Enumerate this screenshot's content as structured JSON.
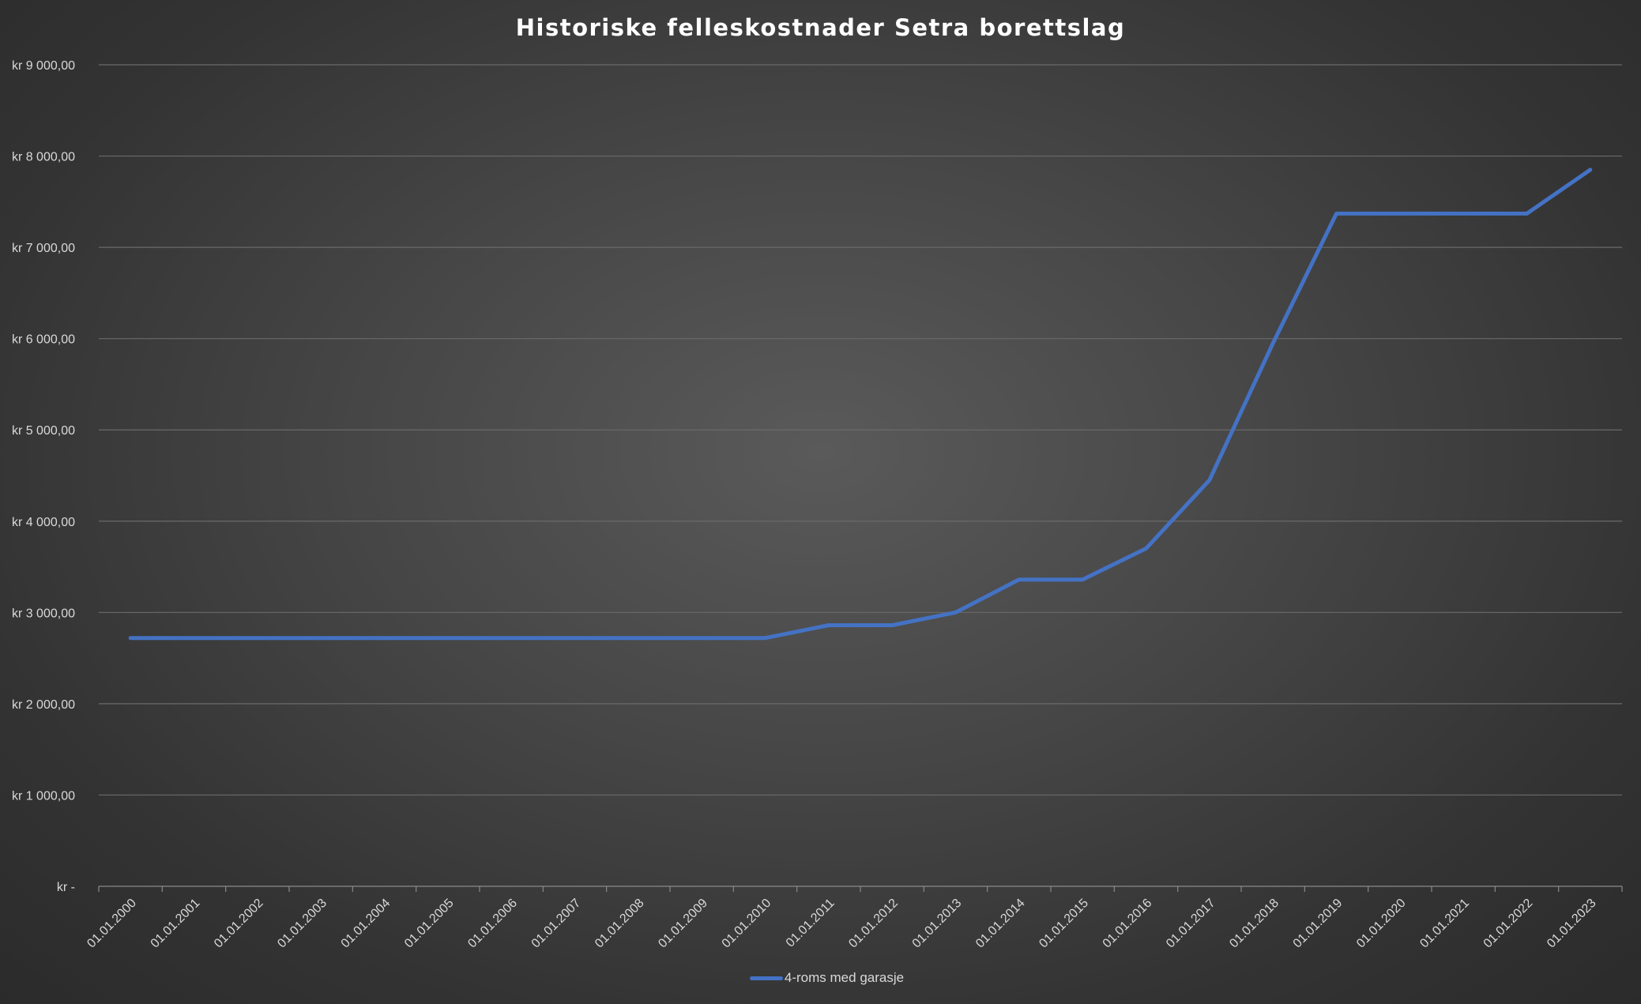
{
  "chart_data": {
    "type": "line",
    "title": "Historiske felleskostnader Setra borettslag",
    "xlabel": "",
    "ylabel": "",
    "categories": [
      "01.01.2000",
      "01.01.2001",
      "01.01.2002",
      "01.01.2003",
      "01.01.2004",
      "01.01.2005",
      "01.01.2006",
      "01.01.2007",
      "01.01.2008",
      "01.01.2009",
      "01.01.2010",
      "01.01.2011",
      "01.01.2012",
      "01.01.2013",
      "01.01.2014",
      "01.01.2015",
      "01.01.2016",
      "01.01.2017",
      "01.01.2018",
      "01.01.2019",
      "01.01.2020",
      "01.01.2021",
      "01.01.2022",
      "01.01.2023"
    ],
    "y_tick_values": [
      0,
      1000,
      2000,
      3000,
      4000,
      5000,
      6000,
      7000,
      8000,
      9000
    ],
    "y_tick_labels": [
      "kr -",
      "kr 1 000,00",
      "kr 2 000,00",
      "kr 3 000,00",
      "kr 4 000,00",
      "kr 5 000,00",
      "kr 6 000,00",
      "kr 7 000,00",
      "kr 8 000,00",
      "kr 9 000,00"
    ],
    "ylim": [
      0,
      9000
    ],
    "grid": true,
    "legend_position": "bottom",
    "series": [
      {
        "name": "4-roms med garasje",
        "color": "#4472c4",
        "values": [
          2720,
          2720,
          2720,
          2720,
          2720,
          2720,
          2720,
          2720,
          2720,
          2720,
          2720,
          2860,
          2860,
          3000,
          3360,
          3360,
          3700,
          4450,
          5950,
          7370,
          7370,
          7370,
          7370,
          7850
        ]
      }
    ]
  }
}
